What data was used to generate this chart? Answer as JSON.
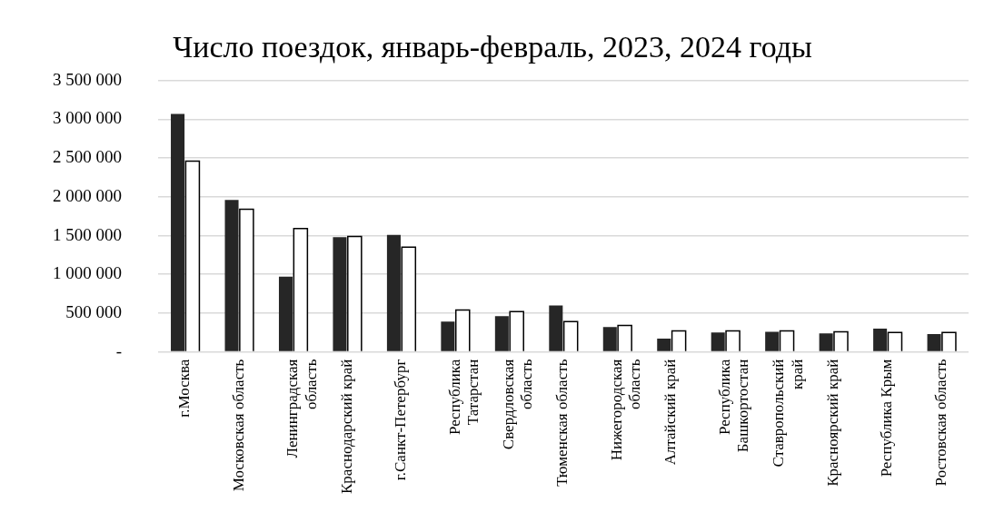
{
  "chart_data": {
    "type": "bar",
    "title": "Число поездок, январь-февраль, 2023, 2024 годы",
    "categories": [
      "г.Москва",
      "Московская область",
      "Ленинградская область",
      "Краснодарский край",
      "г.Санкт-Петербург",
      "Республика Татарстан",
      "Свердловская область",
      "Тюменская область",
      "Нижегородская область",
      "Алтайский край",
      "Республика Башкортостан",
      "Ставропольский край",
      "Красноярский край",
      "Республика Крым",
      "Ростовская область"
    ],
    "series": [
      {
        "color": "#262626",
        "values": [
          3070000,
          1960000,
          970000,
          1480000,
          1510000,
          390000,
          460000,
          600000,
          320000,
          170000,
          250000,
          260000,
          240000,
          300000,
          230000
        ]
      },
      {
        "color": "#ffffff",
        "values": [
          2460000,
          1840000,
          1590000,
          1490000,
          1350000,
          540000,
          520000,
          390000,
          340000,
          270000,
          270000,
          270000,
          260000,
          250000,
          250000
        ]
      }
    ],
    "ylim": [
      0,
      3500000
    ],
    "yticks": [
      {
        "value": 0,
        "label": "-"
      },
      {
        "value": 500000,
        "label": "500 000"
      },
      {
        "value": 1000000,
        "label": "1 000 000"
      },
      {
        "value": 1500000,
        "label": "1 500 000"
      },
      {
        "value": 2000000,
        "label": "2 000 000"
      },
      {
        "value": 2500000,
        "label": "2 500 000"
      },
      {
        "value": 3000000,
        "label": "3 000 000"
      },
      {
        "value": 3500000,
        "label": "3 500 000"
      }
    ],
    "grid": "y"
  }
}
